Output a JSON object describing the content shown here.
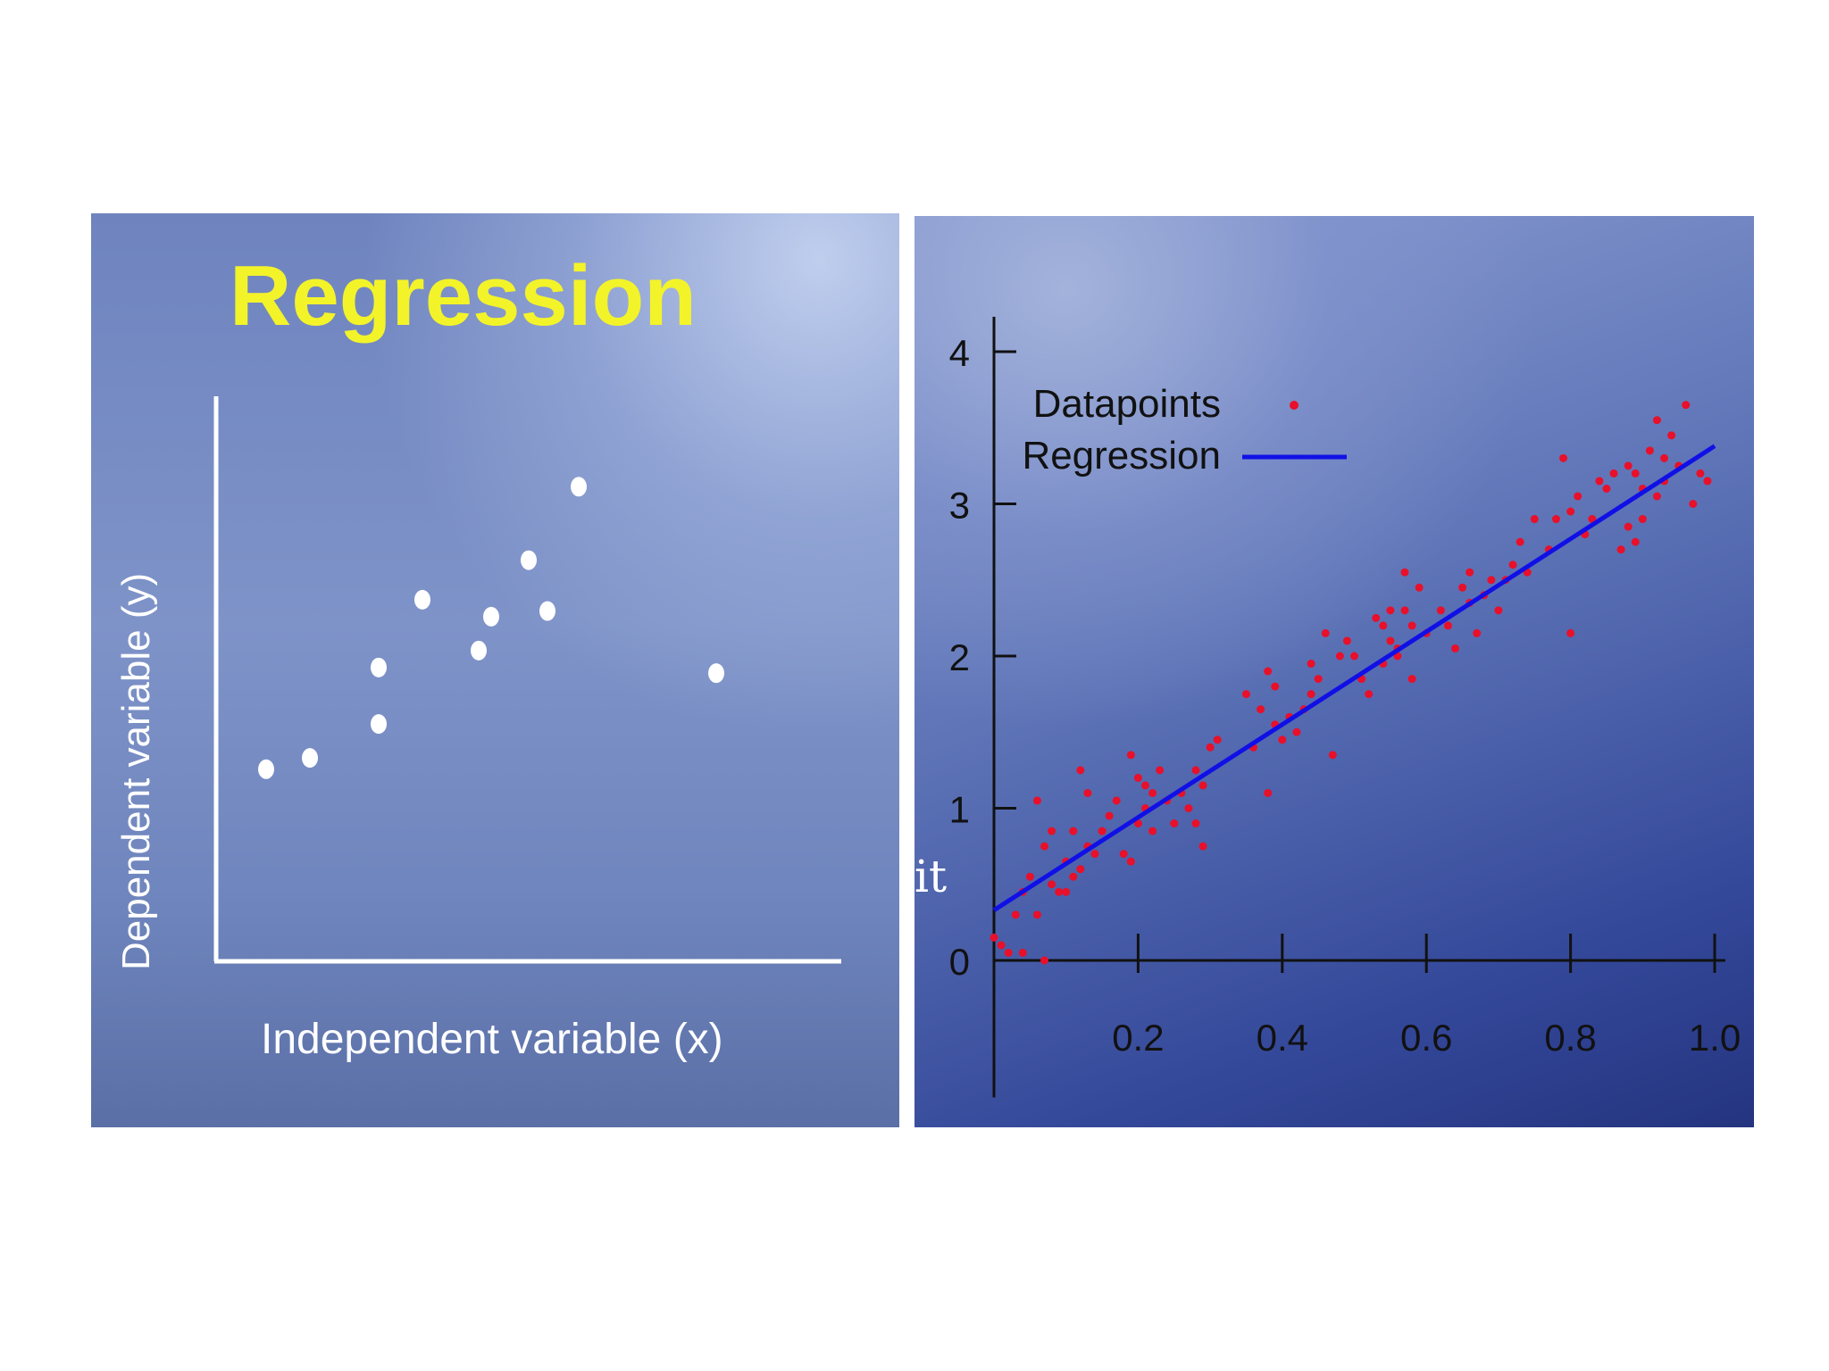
{
  "chart_data": [
    {
      "type": "scatter",
      "title": "Regression",
      "xlabel": "Independent variable (x)",
      "ylabel": "Dependent variable (y)",
      "ticks_shown": false,
      "grid": false,
      "colors": {
        "title": "#f3f32a",
        "points": "#ffffff",
        "axes": "#ffffff",
        "labels": "#ffffff"
      },
      "xlim": [
        0,
        100
      ],
      "ylim": [
        0,
        100
      ],
      "series": [
        {
          "x": [
            8,
            15,
            26,
            26,
            33,
            42,
            44,
            50,
            53,
            58,
            80
          ],
          "y": [
            34,
            36,
            42,
            52,
            64,
            55,
            61,
            71,
            62,
            84,
            51
          ]
        }
      ]
    },
    {
      "type": "scatter",
      "xlim": [
        0,
        1.0
      ],
      "ylim": [
        -0.9,
        4.2
      ],
      "xticks": [
        0.2,
        0.4,
        0.6,
        0.8,
        1.0
      ],
      "xtick_labels": [
        "0.2",
        "0.4",
        "0.6",
        "0.8",
        "1.0"
      ],
      "yticks": [
        0,
        1,
        2,
        3,
        4
      ],
      "ytick_labels": [
        "0",
        "1",
        "2",
        "3",
        "4"
      ],
      "grid": false,
      "legend_position": "top-left",
      "colors": {
        "points": "#e8102a",
        "line": "#1010e6",
        "axes": "#111111"
      },
      "series": [
        {
          "name": "Datapoints",
          "x": [
            0.0,
            0.01,
            0.02,
            0.03,
            0.04,
            0.04,
            0.05,
            0.06,
            0.06,
            0.07,
            0.07,
            0.08,
            0.08,
            0.09,
            0.1,
            0.1,
            0.11,
            0.11,
            0.12,
            0.12,
            0.13,
            0.13,
            0.14,
            0.15,
            0.16,
            0.17,
            0.18,
            0.19,
            0.19,
            0.2,
            0.2,
            0.21,
            0.21,
            0.22,
            0.22,
            0.23,
            0.24,
            0.25,
            0.26,
            0.27,
            0.28,
            0.28,
            0.29,
            0.29,
            0.3,
            0.31,
            0.35,
            0.36,
            0.37,
            0.38,
            0.38,
            0.39,
            0.39,
            0.4,
            0.41,
            0.42,
            0.43,
            0.44,
            0.44,
            0.45,
            0.46,
            0.47,
            0.48,
            0.49,
            0.5,
            0.51,
            0.52,
            0.53,
            0.54,
            0.54,
            0.55,
            0.55,
            0.56,
            0.56,
            0.57,
            0.57,
            0.58,
            0.58,
            0.59,
            0.6,
            0.62,
            0.63,
            0.64,
            0.65,
            0.66,
            0.66,
            0.67,
            0.68,
            0.69,
            0.7,
            0.71,
            0.72,
            0.73,
            0.74,
            0.75,
            0.77,
            0.78,
            0.79,
            0.8,
            0.8,
            0.81,
            0.82,
            0.83,
            0.84,
            0.85,
            0.86,
            0.87,
            0.88,
            0.88,
            0.89,
            0.89,
            0.9,
            0.9,
            0.91,
            0.92,
            0.92,
            0.93,
            0.93,
            0.94,
            0.95,
            0.96,
            0.97,
            0.98,
            0.99
          ],
          "y": [
            0.15,
            0.1,
            0.05,
            0.3,
            0.05,
            0.45,
            0.55,
            0.3,
            1.05,
            0.0,
            0.75,
            0.5,
            0.85,
            0.45,
            0.45,
            0.65,
            0.55,
            0.85,
            1.25,
            0.6,
            0.75,
            1.1,
            0.7,
            0.85,
            0.95,
            1.05,
            0.7,
            0.65,
            1.35,
            0.9,
            1.2,
            1.15,
            1.0,
            0.85,
            1.1,
            1.25,
            1.05,
            0.9,
            1.1,
            1.0,
            0.9,
            1.25,
            1.15,
            0.75,
            1.4,
            1.45,
            1.75,
            1.4,
            1.65,
            1.9,
            1.1,
            1.8,
            1.55,
            1.45,
            1.6,
            1.5,
            1.65,
            1.75,
            1.95,
            1.85,
            2.15,
            1.35,
            2.0,
            2.1,
            2.0,
            1.85,
            1.75,
            2.25,
            2.2,
            1.95,
            2.3,
            2.1,
            2.05,
            2.0,
            2.55,
            2.3,
            2.2,
            1.85,
            2.45,
            2.15,
            2.3,
            2.2,
            2.05,
            2.45,
            2.35,
            2.55,
            2.15,
            2.4,
            2.5,
            2.3,
            2.5,
            2.6,
            2.75,
            2.55,
            2.9,
            2.7,
            2.9,
            3.3,
            2.15,
            2.95,
            3.05,
            2.8,
            2.9,
            3.15,
            3.1,
            3.2,
            2.7,
            2.85,
            3.25,
            3.2,
            2.75,
            3.1,
            2.9,
            3.35,
            3.05,
            3.55,
            3.15,
            3.3,
            3.45,
            3.25,
            3.65,
            3.0,
            3.2,
            3.15
          ]
        },
        {
          "name": "Regression",
          "x": [
            0.0,
            1.0
          ],
          "y": [
            0.33,
            3.38
          ]
        }
      ]
    }
  ],
  "stray_text": "it"
}
